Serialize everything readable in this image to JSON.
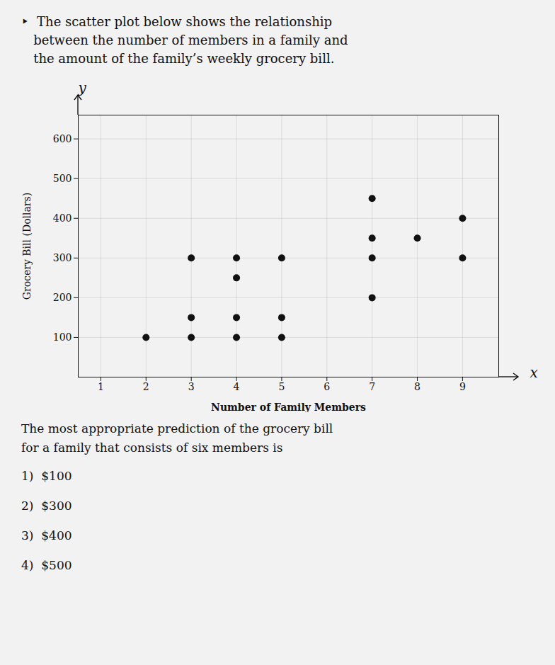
{
  "chart_data": {
    "type": "scatter",
    "title": "‣  The scatter plot below shows the relationship\n   between the number of members in a family and\n   the amount of the family’s weekly grocery bill.",
    "x": [
      2,
      3,
      3,
      3,
      4,
      4,
      4,
      4,
      5,
      5,
      5,
      7,
      7,
      7,
      7,
      8,
      9,
      9
    ],
    "values": [
      100,
      100,
      150,
      300,
      100,
      150,
      250,
      300,
      100,
      150,
      300,
      200,
      300,
      350,
      450,
      350,
      300,
      400
    ],
    "color": "#111111",
    "xlabel": "Number of Family Members",
    "ylabel": "Grocery Bill (Dollars)",
    "xlim": [
      0.5,
      9.8
    ],
    "ylim": [
      0,
      660
    ],
    "xticks": [
      1,
      2,
      3,
      4,
      5,
      6,
      7,
      8,
      9
    ],
    "yticks": [
      100,
      200,
      300,
      400,
      500,
      600
    ],
    "grid": true,
    "annotations": [
      "y",
      "x"
    ],
    "question": "The most appropriate prediction of the grocery bill\nfor a family that consists of six members is",
    "choices": [
      "1)  $100",
      "2)  $300",
      "3)  $400",
      "4)  $500"
    ]
  }
}
